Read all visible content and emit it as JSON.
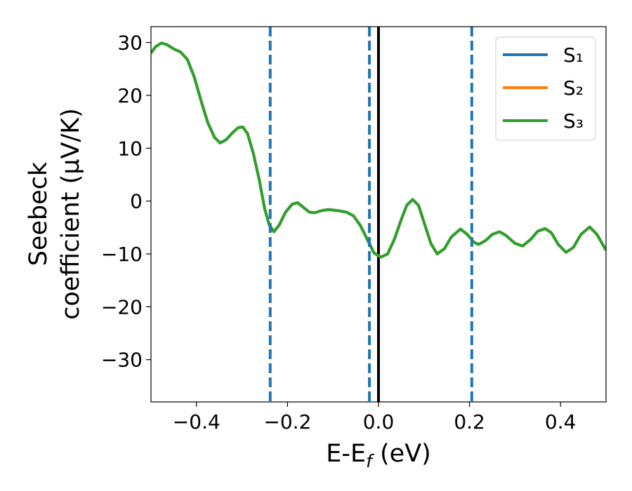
{
  "chart_data": {
    "type": "line",
    "xlabel": [
      "E-E",
      "f",
      " (eV)"
    ],
    "ylabel": [
      "Seebeck",
      "coefficient  (μV/K)"
    ],
    "xlim": [
      -0.5,
      0.5
    ],
    "ylim": [
      -38,
      33
    ],
    "xticks": [
      {
        "value": -0.4,
        "label": "−0.4"
      },
      {
        "value": -0.2,
        "label": "−0.2"
      },
      {
        "value": 0,
        "label": "0.0"
      },
      0.2,
      0.4
    ],
    "yticks": [
      {
        "value": -30,
        "label": "−30"
      },
      {
        "value": -20,
        "label": "−20"
      },
      {
        "value": -10,
        "label": "−10"
      },
      0,
      10,
      20,
      30
    ],
    "legend": "upper right",
    "x": [
      -0.5,
      -0.49,
      -0.477,
      -0.465,
      -0.45,
      -0.435,
      -0.42,
      -0.405,
      -0.39,
      -0.375,
      -0.36,
      -0.348,
      -0.335,
      -0.32,
      -0.308,
      -0.298,
      -0.288,
      -0.275,
      -0.262,
      -0.25,
      -0.24,
      -0.23,
      -0.218,
      -0.205,
      -0.19,
      -0.178,
      -0.165,
      -0.152,
      -0.14,
      -0.125,
      -0.11,
      -0.09,
      -0.07,
      -0.055,
      -0.04,
      -0.025,
      -0.01,
      0.005,
      0.02,
      0.035,
      0.05,
      0.062,
      0.075,
      0.088,
      0.1,
      0.115,
      0.129,
      0.145,
      0.16,
      0.18,
      0.195,
      0.21,
      0.22,
      0.235,
      0.25,
      0.266,
      0.28,
      0.3,
      0.317,
      0.335,
      0.35,
      0.366,
      0.38,
      0.395,
      0.412,
      0.428,
      0.445,
      0.464,
      0.48,
      0.5
    ],
    "series": [
      {
        "name": "S₁",
        "color": "#1f77b4",
        "values": [
          28,
          29.2,
          29.9,
          29.6,
          28.8,
          28.2,
          26.8,
          23.5,
          19,
          14.8,
          12,
          11,
          11.6,
          13,
          13.9,
          14,
          12.8,
          9,
          4,
          -1.5,
          -4.5,
          -5.8,
          -4.5,
          -2.2,
          -0.6,
          -0.3,
          -1.2,
          -2.1,
          -2.2,
          -1.8,
          -1.6,
          -1.8,
          -2.1,
          -2.8,
          -4.6,
          -7.2,
          -9.8,
          -10.6,
          -10,
          -7.2,
          -3.5,
          -0.8,
          0.3,
          -0.8,
          -4,
          -8,
          -10,
          -9,
          -6.8,
          -5.3,
          -6.3,
          -7.8,
          -8.2,
          -7.5,
          -6.3,
          -5.8,
          -6.5,
          -8,
          -8.5,
          -7.2,
          -5.7,
          -5.2,
          -6,
          -8.2,
          -9.7,
          -8.8,
          -6.3,
          -4.9,
          -6.3,
          -9.3
        ]
      },
      {
        "name": "S₂",
        "color": "#ff7f0e",
        "values": [
          28,
          29.2,
          29.9,
          29.6,
          28.8,
          28.2,
          26.8,
          23.5,
          19,
          14.8,
          12,
          11,
          11.6,
          13,
          13.9,
          14,
          12.8,
          9,
          4,
          -1.5,
          -4.5,
          -5.8,
          -4.5,
          -2.2,
          -0.6,
          -0.3,
          -1.2,
          -2.1,
          -2.2,
          -1.8,
          -1.6,
          -1.8,
          -2.1,
          -2.8,
          -4.6,
          -7.2,
          -9.8,
          -10.6,
          -10,
          -7.2,
          -3.5,
          -0.8,
          0.3,
          -0.8,
          -4,
          -8,
          -10,
          -9,
          -6.8,
          -5.3,
          -6.3,
          -7.8,
          -8.2,
          -7.5,
          -6.3,
          -5.8,
          -6.5,
          -8,
          -8.5,
          -7.2,
          -5.7,
          -5.2,
          -6,
          -8.2,
          -9.7,
          -8.8,
          -6.3,
          -4.9,
          -6.3,
          -9.3
        ]
      },
      {
        "name": "S₃",
        "color": "#2ca02c",
        "values": [
          28,
          29.2,
          29.9,
          29.6,
          28.8,
          28.2,
          26.8,
          23.5,
          19,
          14.8,
          12,
          11,
          11.6,
          13,
          13.9,
          14,
          12.8,
          9,
          4,
          -1.5,
          -4.5,
          -5.8,
          -4.5,
          -2.2,
          -0.6,
          -0.3,
          -1.2,
          -2.1,
          -2.2,
          -1.8,
          -1.6,
          -1.8,
          -2.1,
          -2.8,
          -4.6,
          -7.2,
          -9.8,
          -10.6,
          -10,
          -7.2,
          -3.5,
          -0.8,
          0.3,
          -0.8,
          -4,
          -8,
          -10,
          -9,
          -6.8,
          -5.3,
          -6.3,
          -7.8,
          -8.2,
          -7.5,
          -6.3,
          -5.8,
          -6.5,
          -8,
          -8.5,
          -7.2,
          -5.7,
          -5.2,
          -6,
          -8.2,
          -9.7,
          -8.8,
          -6.3,
          -4.9,
          -6.3,
          -9.3
        ]
      }
    ],
    "vlines": [
      {
        "x": -0.238,
        "color": "#1f77b4",
        "style": "dashed"
      },
      {
        "x": -0.02,
        "color": "#1f77b4",
        "style": "dashed"
      },
      {
        "x": 0.205,
        "color": "#1f77b4",
        "style": "dashed"
      },
      {
        "x": 0,
        "color": "#000000",
        "style": "solid"
      }
    ]
  }
}
